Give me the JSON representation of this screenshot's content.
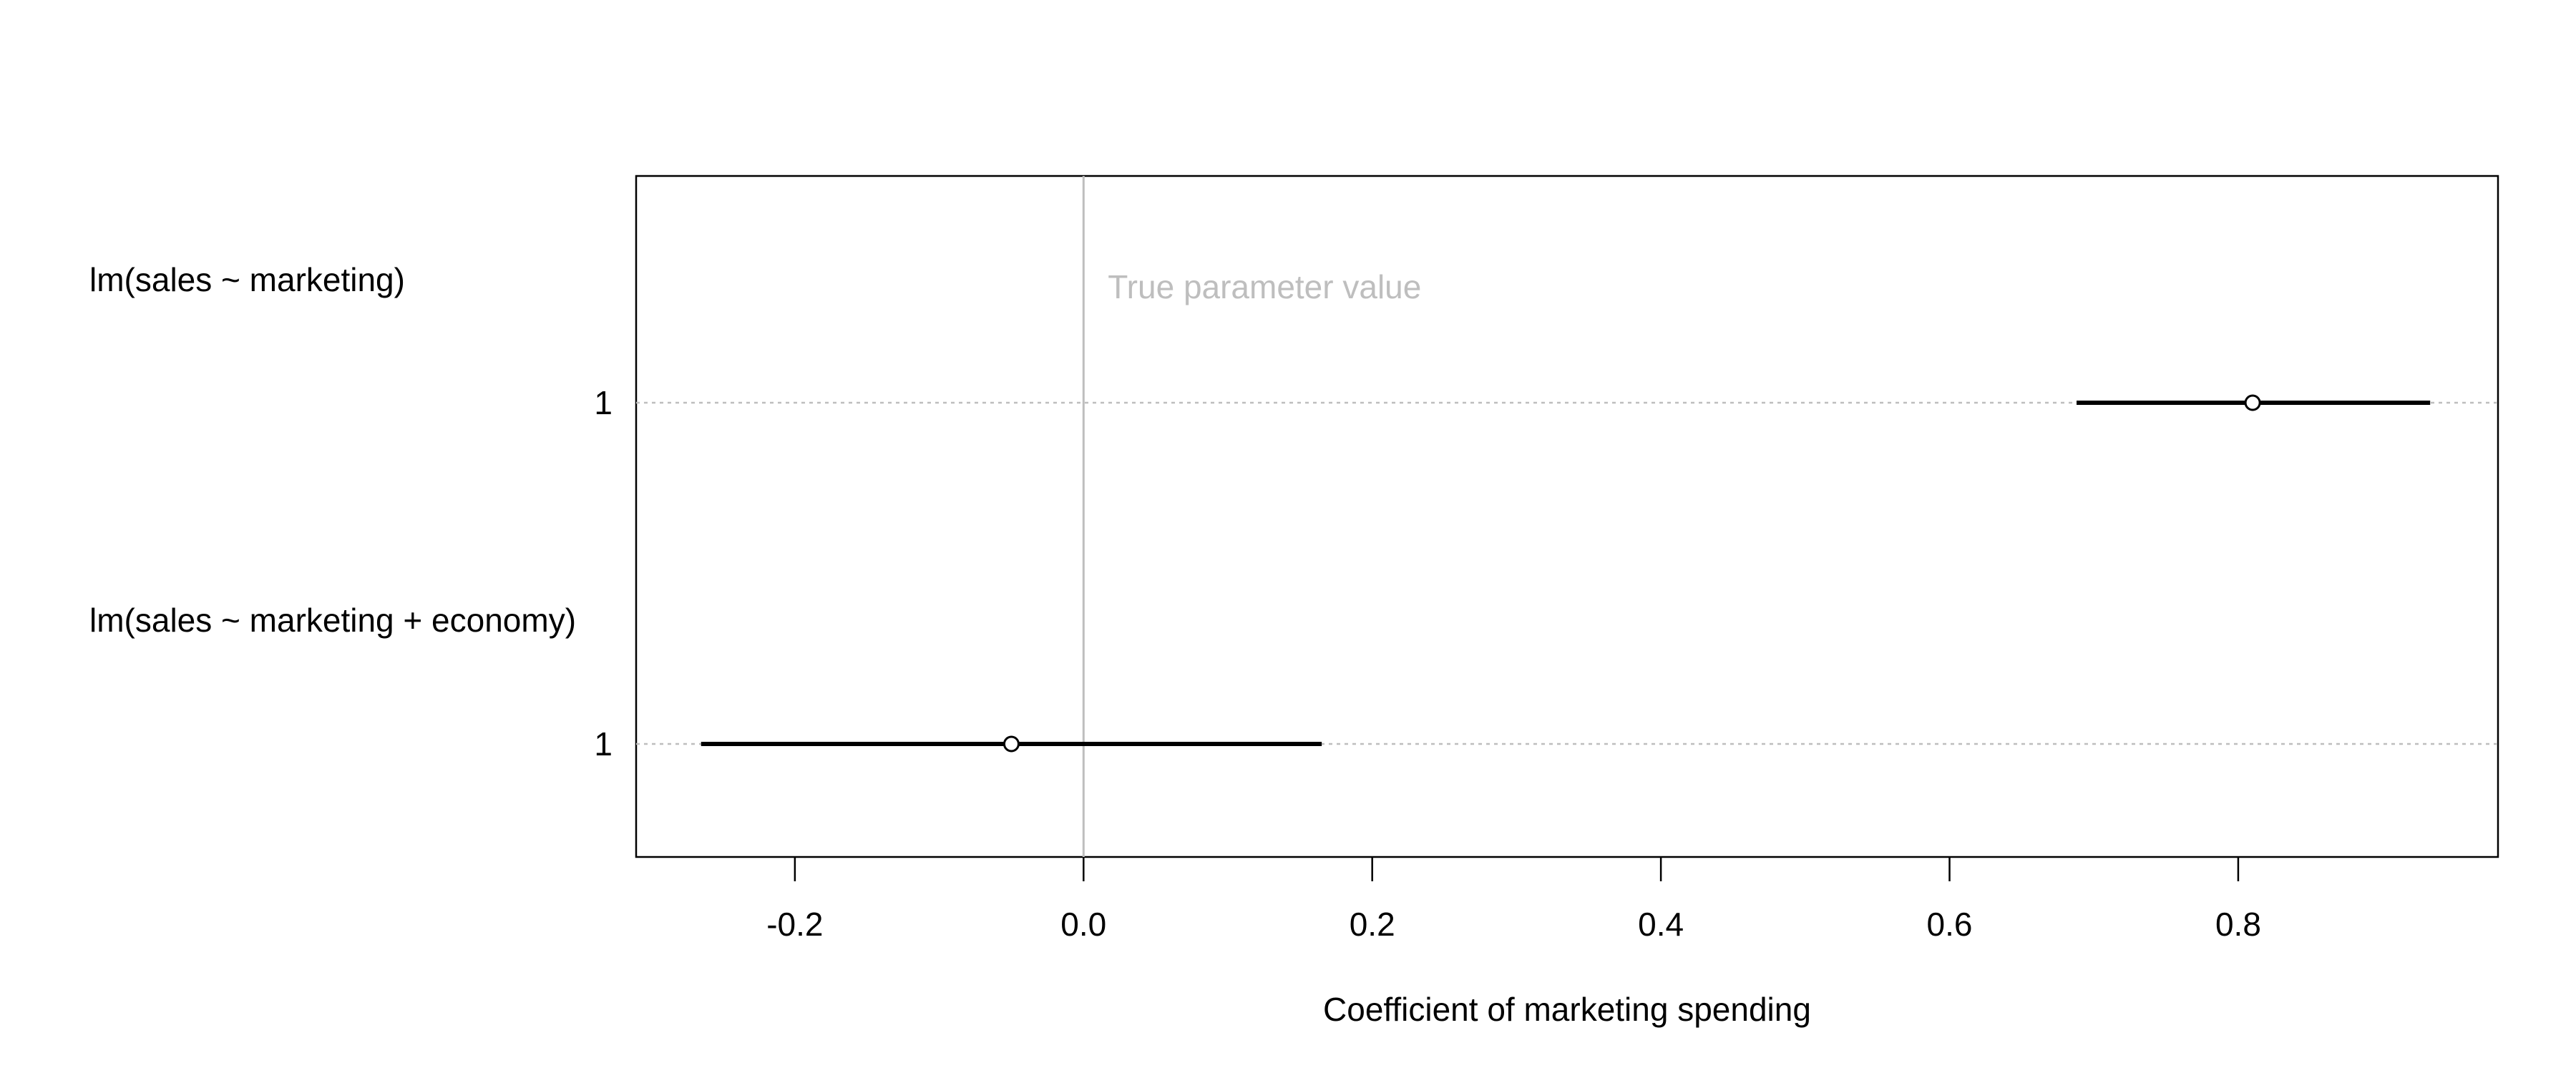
{
  "chart_data": {
    "type": "dotplot-interval",
    "xlabel": "Coefficient of marketing spending",
    "xlim": [
      -0.31,
      0.98
    ],
    "xticks": [
      -0.2,
      0.0,
      0.2,
      0.4,
      0.6,
      0.8
    ],
    "xtick_labels": [
      "-0.2",
      "0.0",
      "0.2",
      "0.4",
      "0.6",
      "0.8"
    ],
    "reference_line": {
      "x": 0.0,
      "label": "True parameter value",
      "color": "#bebebe"
    },
    "groups": [
      {
        "label": "lm(sales ~ marketing)",
        "rows": [
          {
            "label": "1",
            "estimate": 0.81,
            "lower": 0.688,
            "upper": 0.933
          }
        ]
      },
      {
        "label": "lm(sales ~ marketing + economy)",
        "rows": [
          {
            "label": "1",
            "estimate": -0.05,
            "lower": -0.265,
            "upper": 0.165
          }
        ]
      }
    ],
    "grid": "horizontal dotted at each row",
    "colors": {
      "interval": "#000000",
      "point": "#000000",
      "grid": "#bebebe",
      "reference": "#bebebe"
    }
  }
}
